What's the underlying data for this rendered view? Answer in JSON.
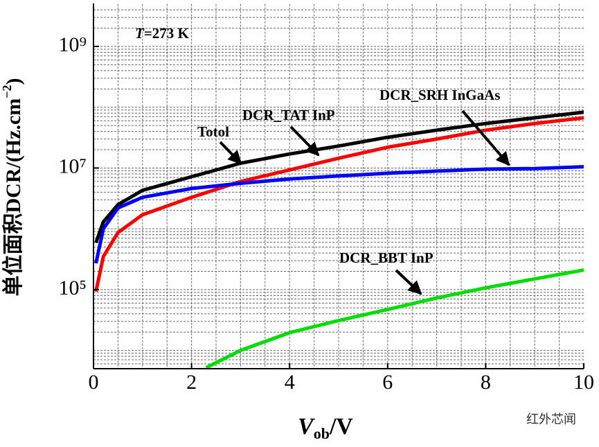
{
  "chart_data": {
    "type": "line",
    "ylabel": [
      "单位面积DCR/(Hz.cm",
      "−2",
      ")"
    ],
    "xlabel": [
      "V",
      "ob",
      "/V"
    ],
    "annotations": [
      {
        "parts": [
          "T",
          "=273 K"
        ]
      },
      {
        "text": "Totol"
      },
      {
        "text": "DCR_TAT InP"
      },
      {
        "text": "DCR_SRH InGaAs"
      },
      {
        "text": "DCR_BBT InP"
      }
    ],
    "watermark": "红外芯闻",
    "log_y": true,
    "grid": true,
    "xlim": [
      0,
      10
    ],
    "ylim": [
      5000,
      5000000000
    ],
    "xticks": [
      0,
      2,
      4,
      6,
      8,
      10
    ],
    "xgrid": [
      0.5,
      1,
      1.5,
      2,
      2.5,
      3,
      3.5,
      4,
      4.5,
      5,
      5.5,
      6,
      6.5,
      7,
      7.5,
      8,
      8.5,
      9,
      9.5
    ],
    "yticks": [
      {
        "value": 100000,
        "label": "10⁵"
      },
      {
        "value": 10000000,
        "label": "10⁷"
      },
      {
        "value": 1000000000,
        "label": "10⁹"
      }
    ],
    "ygrid": [
      6000,
      7000,
      8000,
      9000,
      10000,
      20000,
      30000,
      40000,
      50000,
      60000,
      70000,
      80000,
      90000,
      100000,
      200000,
      300000,
      400000,
      500000,
      600000,
      700000,
      800000,
      900000,
      1000000,
      2000000,
      3000000,
      4000000,
      5000000,
      6000000,
      7000000,
      8000000,
      9000000,
      10000000,
      20000000,
      30000000,
      40000000,
      50000000,
      60000000,
      70000000,
      80000000,
      90000000,
      100000000,
      200000000,
      300000000,
      400000000,
      500000000,
      600000000,
      700000000,
      800000000,
      900000000,
      1000000000,
      2000000000,
      3000000000,
      4000000000
    ],
    "series": [
      {
        "color": "#000000",
        "x": [
          0.05,
          0.2,
          0.5,
          1,
          2,
          3,
          4,
          5,
          6,
          7,
          8,
          9,
          10
        ],
        "values": [
          590000,
          1300000,
          2500000,
          4300000,
          7200000,
          12000000,
          17000000,
          23000000,
          32000000,
          42000000,
          54000000,
          67000000,
          83000000
        ]
      },
      {
        "color": "#ff0000",
        "x": [
          0.05,
          0.2,
          0.5,
          1,
          2,
          3,
          4,
          5,
          6,
          7,
          8,
          9,
          10
        ],
        "values": [
          93000,
          350000,
          870000,
          1700000,
          3300000,
          6000000,
          9300000,
          14500000,
          22000000,
          30000000,
          42000000,
          54000000,
          67000000
        ]
      },
      {
        "color": "#0000ff",
        "x": [
          0.05,
          0.2,
          0.5,
          1,
          2,
          3,
          4,
          5,
          6,
          7,
          8,
          9,
          10
        ],
        "values": [
          270000,
          1000000,
          2200000,
          3300000,
          4600000,
          5600000,
          6600000,
          7400000,
          8200000,
          8900000,
          9600000,
          9800000,
          10500000
        ]
      },
      {
        "color": "#00dd00",
        "x": [
          2.3,
          3,
          4,
          5,
          6,
          7,
          8,
          9,
          10
        ],
        "values": [
          5200,
          10000,
          19600,
          31000,
          47000,
          73000,
          107000,
          150000,
          210000
        ]
      }
    ]
  }
}
